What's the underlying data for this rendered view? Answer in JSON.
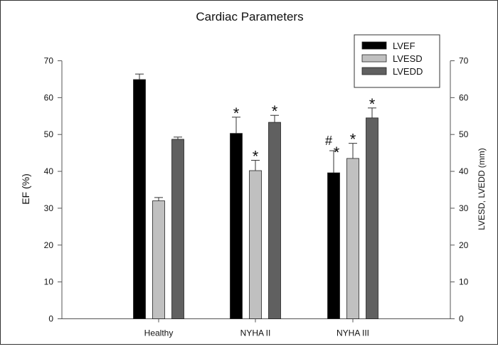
{
  "chart_data": {
    "type": "bar",
    "title": "Cardiac Parameters",
    "ylabel": "EF (%)",
    "ylabel_right": "LVESD, LVEDD (mm)",
    "xlabel": "",
    "ylim": [
      0,
      70
    ],
    "ylim_right": [
      0,
      70
    ],
    "yticks": [
      "0",
      "10",
      "20",
      "30",
      "40",
      "50",
      "60",
      "70"
    ],
    "categories": [
      "Healthy",
      "NYHA II",
      "NYHA III"
    ],
    "grid": false,
    "legend_position": "top-right",
    "series": [
      {
        "name": "LVEF",
        "color": "#000000",
        "axis": "left",
        "values": [
          64.9,
          50.3,
          39.6
        ],
        "errors": [
          1.5,
          4.4,
          6.0
        ],
        "annotations": [
          "",
          "*",
          "#*"
        ]
      },
      {
        "name": "LVESD",
        "color": "#c0c0c0",
        "axis": "right",
        "values": [
          32.0,
          40.2,
          43.5
        ],
        "errors": [
          0.9,
          2.8,
          4.1
        ],
        "annotations": [
          "",
          "*",
          "*"
        ]
      },
      {
        "name": "LVEDD",
        "color": "#606060",
        "axis": "right",
        "values": [
          48.7,
          53.3,
          54.5
        ],
        "errors": [
          0.6,
          1.9,
          2.7
        ],
        "annotations": [
          "",
          "*",
          "*"
        ]
      }
    ]
  }
}
